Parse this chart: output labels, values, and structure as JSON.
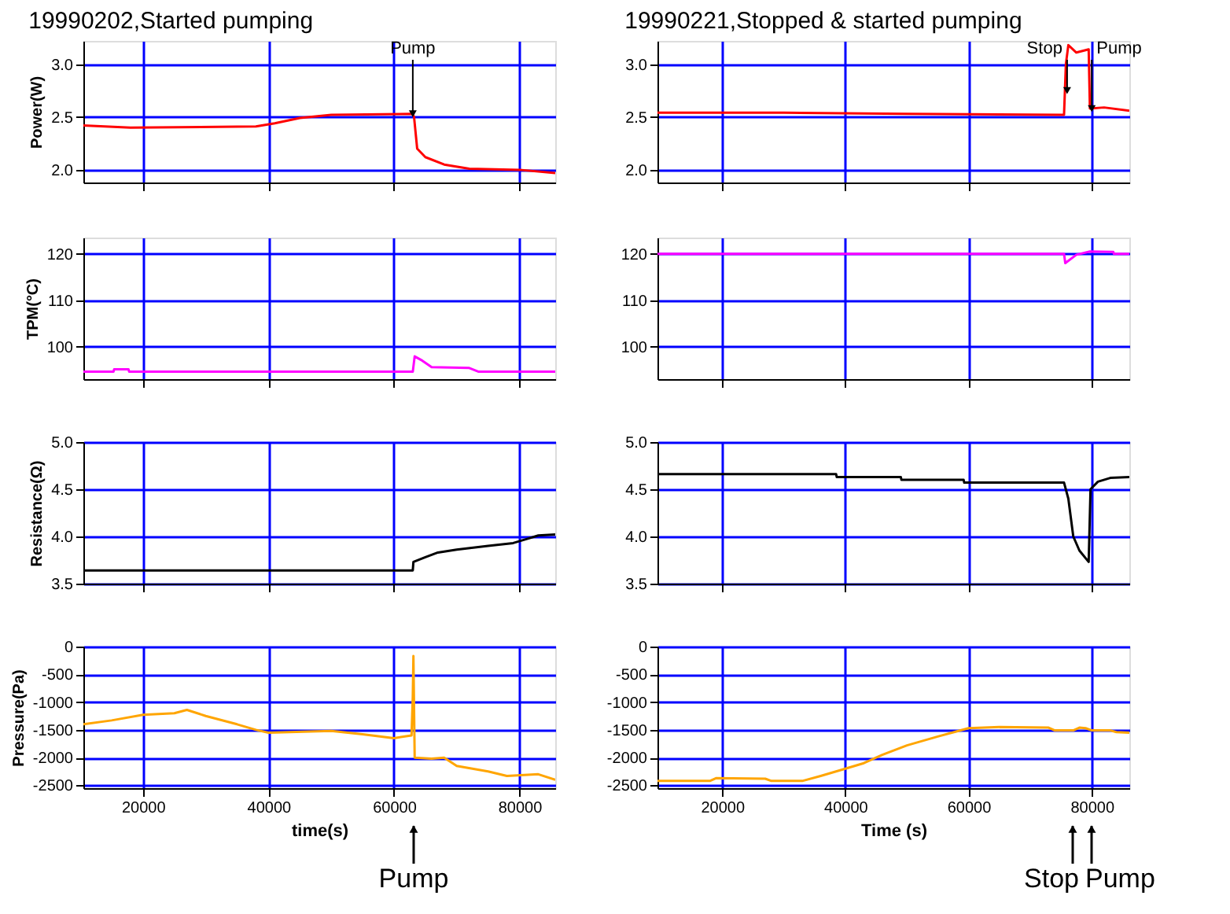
{
  "chart_data": [
    {
      "type": "line",
      "title": "19990202,Started pumping",
      "ylabel": "Power(W)",
      "xlim": [
        10500,
        85700
      ],
      "ylim": [
        1.88,
        3.22
      ],
      "xticks": [
        20000,
        40000,
        60000,
        80000
      ],
      "yticks": [
        {
          "value": 2,
          "label": "2.0"
        },
        {
          "value": 2.5,
          "label": "2.5"
        },
        {
          "value": 3,
          "label": "3.0"
        }
      ],
      "grid": true,
      "tick_labels": "y",
      "x": [
        10500,
        18000,
        38000,
        41000,
        45000,
        50000,
        63000,
        63200,
        63700,
        65000,
        68000,
        72000,
        80000,
        85700
      ],
      "series": [
        {
          "color": "#ff0000",
          "values": [
            2.42,
            2.4,
            2.41,
            2.44,
            2.49,
            2.52,
            2.53,
            2.5,
            2.2,
            2.12,
            2.05,
            2.01,
            2.0,
            1.97
          ]
        }
      ],
      "annotations": [
        {
          "text": "Pump",
          "x": 63000,
          "y": 2.53
        }
      ]
    },
    {
      "type": "line",
      "ylabel": "TPM(°C)",
      "xlim": [
        10500,
        85700
      ],
      "ylim": [
        93,
        123.5
      ],
      "xticks": [
        20000,
        40000,
        60000,
        80000
      ],
      "yticks": [
        100,
        110,
        120
      ],
      "grid": true,
      "tick_labels": "y",
      "x": [
        10500,
        15300,
        15400,
        17700,
        17800,
        63000,
        63300,
        64500,
        66000,
        72000,
        73500,
        85700
      ],
      "series": [
        {
          "color": "#ff00ff",
          "values": [
            94.6,
            94.6,
            95.1,
            95.1,
            94.6,
            94.6,
            97.9,
            97,
            95.6,
            95.4,
            94.6,
            94.6
          ]
        }
      ]
    },
    {
      "type": "line",
      "ylabel": "Resistance(Ω)",
      "xlim": [
        10500,
        85700
      ],
      "ylim": [
        3.5,
        5.0
      ],
      "xticks": [
        20000,
        40000,
        60000,
        80000
      ],
      "yticks": [
        {
          "value": 3.5,
          "label": "3.5"
        },
        {
          "value": 4,
          "label": "4.0"
        },
        {
          "value": 4.5,
          "label": "4.5"
        },
        {
          "value": 5,
          "label": "5.0"
        }
      ],
      "grid": true,
      "tick_labels": "y",
      "x": [
        10500,
        63000,
        63100,
        65000,
        67000,
        70000,
        75000,
        79000,
        81000,
        83000,
        85700
      ],
      "series": [
        {
          "color": "#000000",
          "values": [
            3.64,
            3.64,
            3.73,
            3.78,
            3.83,
            3.86,
            3.9,
            3.93,
            3.97,
            4.01,
            4.02
          ]
        }
      ]
    },
    {
      "type": "line",
      "ylabel": "Pressure(Pa)",
      "xlabel": "time(s)",
      "xlim": [
        10500,
        85700
      ],
      "ylim": [
        -2550,
        0
      ],
      "xticks": [
        20000,
        40000,
        60000,
        80000
      ],
      "yticks": [
        0,
        -500,
        -1000,
        -1500,
        -2000,
        -2500
      ],
      "grid": true,
      "x": [
        10500,
        15000,
        20000,
        25000,
        27000,
        30000,
        35000,
        38000,
        40000,
        50000,
        55000,
        60000,
        62800,
        63000,
        63100,
        63300,
        66000,
        68000,
        70000,
        75000,
        78000,
        83000,
        85700
      ],
      "series": [
        {
          "color": "#ffa500",
          "values": [
            -1400,
            -1330,
            -1230,
            -1200,
            -1140,
            -1250,
            -1400,
            -1500,
            -1550,
            -1520,
            -1580,
            -1650,
            -1600,
            -900,
            -170,
            -2000,
            -2020,
            -2000,
            -2150,
            -2250,
            -2330,
            -2300,
            -2400
          ]
        }
      ],
      "annotations": [
        "Pump"
      ]
    },
    {
      "type": "line",
      "title": "19990221,Stopped & started pumping",
      "xlim": [
        9500,
        86100
      ],
      "ylim": [
        1.88,
        3.22
      ],
      "xticks": [
        20000,
        40000,
        60000,
        80000
      ],
      "yticks": [
        {
          "value": 2,
          "label": "2.0"
        },
        {
          "value": 2.5,
          "label": "2.5"
        },
        {
          "value": 3,
          "label": "3.0"
        }
      ],
      "grid": true,
      "tick_labels": "y",
      "x": [
        9500,
        30000,
        50000,
        75500,
        75800,
        76200,
        77500,
        79500,
        79700,
        82000,
        86100
      ],
      "series": [
        {
          "color": "#ff0000",
          "values": [
            2.54,
            2.54,
            2.53,
            2.52,
            3.0,
            3.18,
            3.11,
            3.14,
            2.58,
            2.59,
            2.56
          ]
        }
      ],
      "annotations": [
        {
          "text": "Stop",
          "x": 76000,
          "y": 2.75
        },
        {
          "text": "Pump",
          "x": 80000,
          "y": 2.58
        }
      ]
    },
    {
      "type": "line",
      "xlim": [
        9500,
        86100
      ],
      "ylim": [
        93,
        123.5
      ],
      "xticks": [
        20000,
        40000,
        60000,
        80000
      ],
      "yticks": [
        100,
        110,
        120
      ],
      "grid": true,
      "tick_labels": "y",
      "x": [
        9500,
        75500,
        75700,
        77500,
        79700,
        83500,
        83600,
        86100
      ],
      "series": [
        {
          "color": "#ff00ff",
          "values": [
            120,
            120,
            118,
            119.8,
            120.5,
            120.4,
            120,
            120
          ]
        }
      ]
    },
    {
      "type": "line",
      "xlim": [
        9500,
        86100
      ],
      "ylim": [
        3.5,
        5.0
      ],
      "xticks": [
        20000,
        40000,
        60000,
        80000
      ],
      "yticks": [
        {
          "value": 3.5,
          "label": "3.5"
        },
        {
          "value": 4,
          "label": "4.0"
        },
        {
          "value": 4.5,
          "label": "4.5"
        },
        {
          "value": 5,
          "label": "5.0"
        }
      ],
      "grid": true,
      "tick_labels": "y",
      "x": [
        9500,
        38500,
        38600,
        49000,
        49100,
        59200,
        59300,
        75500,
        76200,
        77000,
        78000,
        79500,
        79800,
        81000,
        83000,
        86100
      ],
      "series": [
        {
          "color": "#000000",
          "values": [
            4.66,
            4.66,
            4.63,
            4.63,
            4.6,
            4.6,
            4.57,
            4.57,
            4.4,
            4.0,
            3.85,
            3.73,
            4.5,
            4.58,
            4.62,
            4.63
          ]
        }
      ]
    },
    {
      "type": "line",
      "xlabel": "Time (s)",
      "xlim": [
        9500,
        86100
      ],
      "ylim": [
        -2550,
        0
      ],
      "xticks": [
        20000,
        40000,
        60000,
        80000
      ],
      "yticks": [
        0,
        -500,
        -1000,
        -1500,
        -2000,
        -2500
      ],
      "grid": true,
      "x": [
        9500,
        18000,
        19000,
        27000,
        28000,
        33000,
        36000,
        40000,
        43000,
        46000,
        50000,
        55000,
        58000,
        60000,
        65000,
        73000,
        74000,
        77000,
        78000,
        79000,
        80000,
        83000,
        84000,
        86100
      ],
      "series": [
        {
          "color": "#ffa500",
          "values": [
            -2420,
            -2420,
            -2370,
            -2380,
            -2420,
            -2420,
            -2330,
            -2200,
            -2100,
            -1950,
            -1780,
            -1620,
            -1530,
            -1470,
            -1450,
            -1460,
            -1510,
            -1510,
            -1460,
            -1470,
            -1510,
            -1510,
            -1540,
            -1550
          ]
        }
      ],
      "annotations": [
        "Stop",
        "Pump"
      ]
    }
  ]
}
